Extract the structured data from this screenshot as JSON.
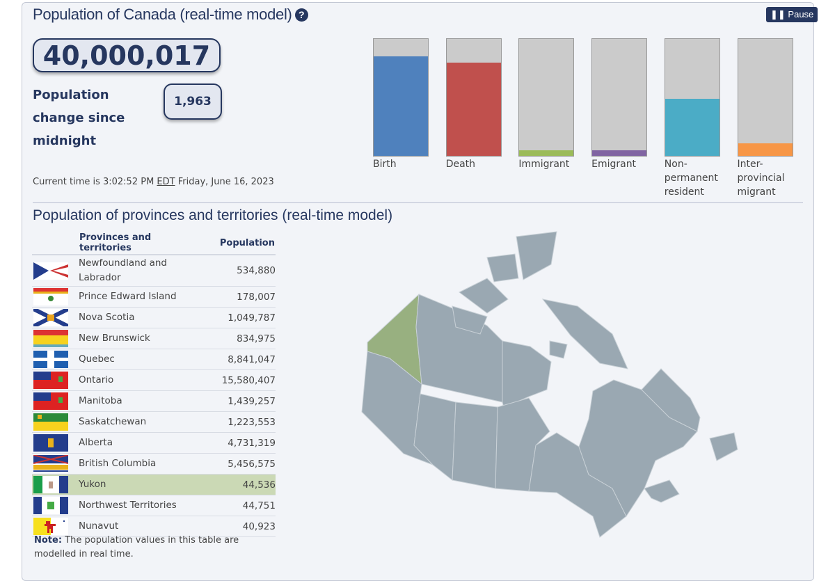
{
  "header": {
    "title": "Population of Canada (real-time model)",
    "help_icon": "question-circle-icon",
    "pause_label": "Pause"
  },
  "population": {
    "total": "40,000,017",
    "change_label": "Population change since midnight",
    "change_value": "1,963"
  },
  "time": {
    "prefix": "Current time is 3:02:52 PM",
    "tz": "EDT",
    "date": "Friday, June 16, 2023"
  },
  "components": [
    {
      "label": "Birth",
      "level": 0.85,
      "color": "#4f81bd"
    },
    {
      "label": "Death",
      "level": 0.8,
      "color": "#c0504d"
    },
    {
      "label": "Immigrant",
      "level": 0.05,
      "color": "#9bbb59"
    },
    {
      "label": "Emigrant",
      "level": 0.05,
      "color": "#8064a2"
    },
    {
      "label": "Non-permanent resident",
      "level": 0.49,
      "color": "#4bacc6"
    },
    {
      "label": "Inter-provincial migrant",
      "level": 0.11,
      "color": "#f79646"
    }
  ],
  "provinces": {
    "title": "Population of provinces and territories (real-time model)",
    "col_name": "Provinces and territories",
    "col_pop": "Population",
    "rows": [
      {
        "name": "Newfoundland and Labrador",
        "pop": "534,880"
      },
      {
        "name": "Prince Edward Island",
        "pop": "178,007"
      },
      {
        "name": "Nova Scotia",
        "pop": "1,049,787"
      },
      {
        "name": "New Brunswick",
        "pop": "834,975"
      },
      {
        "name": "Quebec",
        "pop": "8,841,047"
      },
      {
        "name": "Ontario",
        "pop": "15,580,407"
      },
      {
        "name": "Manitoba",
        "pop": "1,439,257"
      },
      {
        "name": "Saskatchewan",
        "pop": "1,223,553"
      },
      {
        "name": "Alberta",
        "pop": "4,731,319"
      },
      {
        "name": "British Columbia",
        "pop": "5,456,575"
      },
      {
        "name": "Yukon",
        "pop": "44,536",
        "selected": true
      },
      {
        "name": "Northwest Territories",
        "pop": "44,751"
      },
      {
        "name": "Nunavut",
        "pop": "40,923"
      }
    ],
    "note_bold": "Note:",
    "note": "The population values in this table are modelled in real time."
  },
  "map": {
    "land_color": "#9aa8b2",
    "selected_color": "#98b080",
    "selected": "Yukon"
  }
}
